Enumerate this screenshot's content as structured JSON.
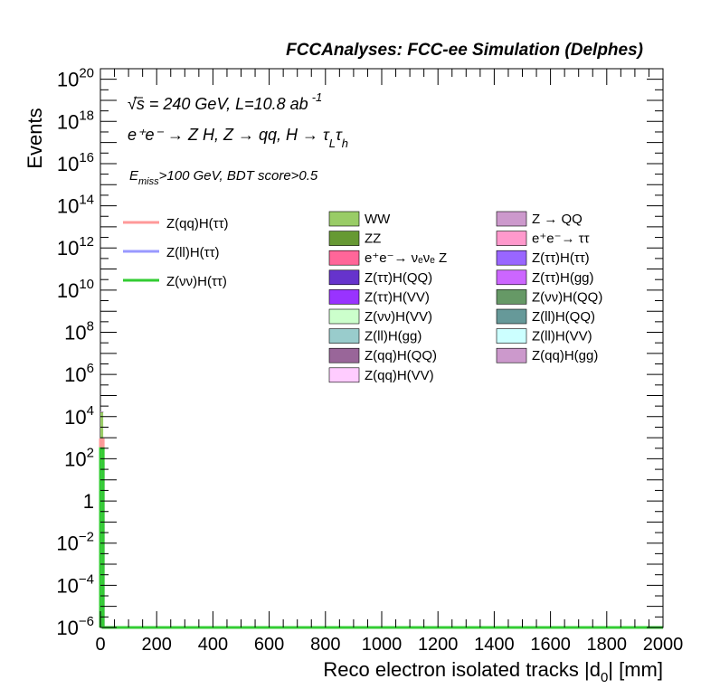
{
  "chart_data": {
    "type": "bar",
    "title": "FCCAnalyses: FCC-ee Simulation (Delphes)",
    "xlabel": "Reco electron isolated tracks |d",
    "xlabel_sub": "0",
    "xlabel_tail": "| [mm]",
    "ylabel": "Events",
    "xlim": [
      0,
      2000
    ],
    "ylim_log10": [
      -6,
      20.5
    ],
    "log_y": true,
    "x_ticks": [
      "0",
      "200",
      "400",
      "600",
      "800",
      "1000",
      "1200",
      "1400",
      "1600",
      "1800",
      "2000"
    ],
    "y_ticks": [
      {
        "base": "10",
        "exp": "20"
      },
      {
        "base": "10",
        "exp": "18"
      },
      {
        "base": "10",
        "exp": "16"
      },
      {
        "base": "10",
        "exp": "14"
      },
      {
        "base": "10",
        "exp": "12"
      },
      {
        "base": "10",
        "exp": "10"
      },
      {
        "base": "10",
        "exp": "8"
      },
      {
        "base": "10",
        "exp": "6"
      },
      {
        "base": "10",
        "exp": "4"
      },
      {
        "base": "10",
        "exp": "2"
      },
      {
        "base": "1",
        "exp": ""
      },
      {
        "base": "10",
        "exp": "−2"
      },
      {
        "base": "10",
        "exp": "−4"
      },
      {
        "base": "10",
        "exp": "−6"
      }
    ],
    "annotations": {
      "energy": "√s = 240 GeV, L=10.8 ab",
      "energy_sup": "-1",
      "process_main": "e⁺e⁻ → Z H, Z → qq, H → τ",
      "process_sub1": "L",
      "process_tau": "τ",
      "process_sub2": "h",
      "cut_prefix": "E",
      "cut_sub": "miss",
      "cut_rest": ">100 GeV, BDT score>0.5"
    },
    "signal_series": [
      {
        "name": "Z(qq)H(ττ)",
        "color": "#ff9999",
        "bin_edges": [
          0,
          10
        ],
        "values": [
          800
        ]
      },
      {
        "name": "Z(ll)H(ττ)",
        "color": "#9999ff",
        "bin_edges": [
          0,
          10
        ],
        "values": [
          60
        ]
      },
      {
        "name": "Z(νν)H(ττ)",
        "color": "#33cc33",
        "bin_edges": [
          0,
          10
        ],
        "values": [
          300
        ]
      }
    ],
    "background_stack": [
      {
        "name": "WW",
        "color": "#99cc66",
        "value": 15000
      },
      {
        "name": "ZZ",
        "color": "#669933",
        "value": 2000
      },
      {
        "name": "e⁺e⁻→ νₑνₑ Z",
        "color": "#ff6699",
        "value": 500
      },
      {
        "name": "Z(ττ)H(QQ)",
        "color": "#6633cc",
        "value": 60
      },
      {
        "name": "Z(ττ)H(VV)",
        "color": "#9933ff",
        "value": 30
      },
      {
        "name": "Z(νν)H(VV)",
        "color": "#ccffcc",
        "value": 20
      },
      {
        "name": "Z(ll)H(gg)",
        "color": "#99cccc",
        "value": 10
      },
      {
        "name": "Z(qq)H(QQ)",
        "color": "#996699",
        "value": 8
      },
      {
        "name": "Z(qq)H(VV)",
        "color": "#ffccff",
        "value": 5
      },
      {
        "name": "Z → QQ",
        "color": "#cc99cc",
        "value": 3
      },
      {
        "name": "e⁺e⁻→ ττ",
        "color": "#ff99cc",
        "value": 2
      },
      {
        "name": "Z(ττ)H(ττ)",
        "color": "#9966ff",
        "value": 1
      },
      {
        "name": "Z(ττ)H(gg)",
        "color": "#cc66ff",
        "value": 1
      },
      {
        "name": "Z(νν)H(QQ)",
        "color": "#669966",
        "value": 1
      },
      {
        "name": "Z(ll)H(QQ)",
        "color": "#669999",
        "value": 1
      },
      {
        "name": "Z(ll)H(VV)",
        "color": "#ccffff",
        "value": 1
      },
      {
        "name": "Z(qq)H(gg)",
        "color": "#cc99cc",
        "value": 1
      }
    ],
    "legend_col1": [
      "WW",
      "ZZ",
      "e⁺e⁻→ νₑνₑ Z",
      "Z(ττ)H(QQ)",
      "Z(ττ)H(VV)",
      "Z(νν)H(VV)",
      "Z(ll)H(gg)",
      "Z(qq)H(QQ)",
      "Z(qq)H(VV)"
    ],
    "legend_col2": [
      "Z → QQ",
      "e⁺e⁻→ ττ",
      "Z(ττ)H(ττ)",
      "Z(ττ)H(gg)",
      "Z(νν)H(QQ)",
      "Z(ll)H(QQ)",
      "Z(ll)H(VV)",
      "Z(qq)H(gg)"
    ]
  }
}
